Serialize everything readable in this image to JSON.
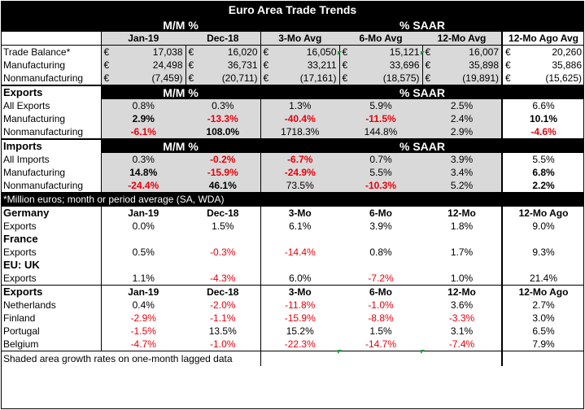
{
  "title": "Euro Area Trade Trends",
  "header1": {
    "mm": "M/M %",
    "saar": "% SAAR"
  },
  "header2": [
    "Jan-19",
    "Dec-18",
    "3-Mo Avg",
    "6-Mo Avg",
    "12-Mo Avg",
    "12-Mo Ago Avg"
  ],
  "currency": "€",
  "balance_rows": [
    {
      "label": "Trade Balance*",
      "values": [
        "17,038",
        "16,020",
        "16,050",
        "15,121",
        "16,007",
        "20,260"
      ]
    },
    {
      "label": "Manufacturing",
      "values": [
        "24,498",
        "36,731",
        "33,211",
        "33,696",
        "35,898",
        "35,886"
      ]
    },
    {
      "label": "Nonmanufacturing",
      "values": [
        "(7,459)",
        "(20,711)",
        "(17,161)",
        "(18,575)",
        "(19,891)",
        "(15,625)"
      ]
    }
  ],
  "exports_section": {
    "label": "Exports",
    "mm": "M/M %",
    "saar": "% SAAR",
    "rows": [
      {
        "label": "All Exports",
        "values": [
          "0.8%",
          "0.3%",
          "1.3%",
          "5.9%",
          "2.5%",
          "6.6%"
        ]
      },
      {
        "label": "Manufacturing",
        "values": [
          "2.9%",
          "-13.3%",
          "-40.4%",
          "-11.5%",
          "2.4%",
          "10.1%"
        ]
      },
      {
        "label": "Nonmanufacturing",
        "values": [
          "-6.1%",
          "108.0%",
          "1718.3%",
          "144.8%",
          "2.9%",
          "-4.6%"
        ]
      }
    ]
  },
  "imports_section": {
    "label": "Imports",
    "mm": "M/M %",
    "saar": "% SAAR",
    "rows": [
      {
        "label": "All Imports",
        "values": [
          "0.3%",
          "-0.2%",
          "-6.7%",
          "0.7%",
          "3.9%",
          "5.5%"
        ]
      },
      {
        "label": "Manufacturing",
        "values": [
          "14.8%",
          "-15.9%",
          "-24.9%",
          "5.5%",
          "3.4%",
          "6.8%"
        ]
      },
      {
        "label": "Nonmanufacturing",
        "values": [
          "-24.4%",
          "46.1%",
          "73.5%",
          "-10.3%",
          "5.2%",
          "2.2%"
        ]
      }
    ]
  },
  "footnote_million": "*Million euros; month or period average (SA, WDA)",
  "country_header": {
    "label": "Germany",
    "cols": [
      "Jan-19",
      "Dec-18",
      "3-Mo",
      "6-Mo",
      "12-Mo",
      "12-Mo Ago"
    ]
  },
  "countries": [
    {
      "name": "Germany",
      "row_label": "Exports",
      "values": [
        "0.0%",
        "1.5%",
        "6.1%",
        "3.9%",
        "1.8%",
        "9.0%"
      ]
    },
    {
      "name": "France",
      "row_label": "Exports",
      "values": [
        "0.5%",
        "-0.3%",
        "-14.4%",
        "0.8%",
        "1.7%",
        "9.3%"
      ]
    },
    {
      "name": "EU: UK",
      "row_label": "Exports",
      "values": [
        "1.1%",
        "-4.3%",
        "6.0%",
        "-7.2%",
        "1.0%",
        "21.4%"
      ]
    }
  ],
  "dest_header": {
    "label": "Exports",
    "cols": [
      "Jan-19",
      "Dec-18",
      "3-Mo",
      "6-Mo",
      "12-Mo",
      "12-Mo Ago"
    ]
  },
  "destinations": [
    {
      "label": "Netherlands",
      "values": [
        "0.4%",
        "-2.0%",
        "-11.8%",
        "-1.0%",
        "3.6%",
        "2.7%"
      ]
    },
    {
      "label": "Finland",
      "values": [
        "-2.9%",
        "-1.1%",
        "-15.9%",
        "-8.8%",
        "-3.3%",
        "3.0%"
      ]
    },
    {
      "label": "Portugal",
      "values": [
        "-1.5%",
        "13.5%",
        "15.2%",
        "1.5%",
        "3.1%",
        "6.5%"
      ]
    },
    {
      "label": "Belgium",
      "values": [
        "-4.7%",
        "-1.0%",
        "-22.3%",
        "-14.7%",
        "-7.4%",
        "7.9%"
      ]
    }
  ],
  "footnote_shaded": "Shaded area growth rates on one-month lagged data",
  "colors": {
    "negative": "#e8000b",
    "header_bg": "#000000",
    "shade": "#d9d9d9",
    "comment_marker": "#1a9e3a"
  }
}
